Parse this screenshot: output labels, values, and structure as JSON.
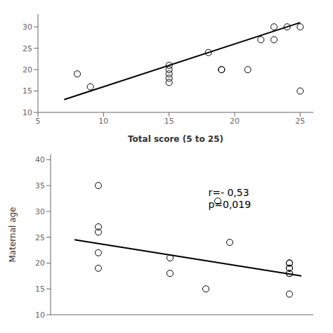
{
  "chart_data": [
    {
      "type": "scatter",
      "x_label": "Total score (5 to 25)",
      "xlim": [
        5,
        26
      ],
      "ylim": [
        10,
        33
      ],
      "xticks": [
        5,
        10,
        15,
        20,
        25
      ],
      "yticks": [
        10,
        15,
        20,
        25,
        30
      ],
      "grid": false,
      "series": [
        {
          "type": "scatter",
          "marker": "open_circle",
          "color": "#000000",
          "x": [
            8,
            9,
            15,
            15,
            15,
            15,
            15,
            18,
            19,
            19,
            21,
            22,
            23,
            23,
            24,
            25,
            25
          ],
          "values": [
            19,
            16,
            21,
            20,
            19,
            18,
            17,
            24,
            20,
            20,
            20,
            27,
            30,
            27,
            30,
            30,
            15
          ]
        },
        {
          "type": "line",
          "color": "#000000",
          "x": [
            7,
            25
          ],
          "values": [
            13,
            31
          ]
        }
      ]
    },
    {
      "type": "scatter",
      "y_label": "Maternal age",
      "annotation": "r=- 0,53\np=0,019",
      "xlim": [
        5,
        27
      ],
      "ylim": [
        10,
        41
      ],
      "xticks": [],
      "yticks": [
        10,
        15,
        20,
        25,
        30,
        35,
        40
      ],
      "tick_labels": "y",
      "grid": false,
      "series": [
        {
          "type": "scatter",
          "marker": "open_circle",
          "color": "#000000",
          "x": [
            9,
            9,
            9,
            9,
            9,
            15,
            15,
            18,
            19,
            20,
            25,
            25,
            25,
            25,
            25,
            25,
            25
          ],
          "values": [
            35,
            26,
            27,
            22,
            19,
            21,
            18,
            15,
            32,
            24,
            20,
            20,
            19,
            19,
            18,
            18,
            14
          ]
        },
        {
          "type": "line",
          "color": "#000000",
          "x": [
            7,
            26
          ],
          "values": [
            24.5,
            17.5
          ]
        }
      ]
    }
  ]
}
